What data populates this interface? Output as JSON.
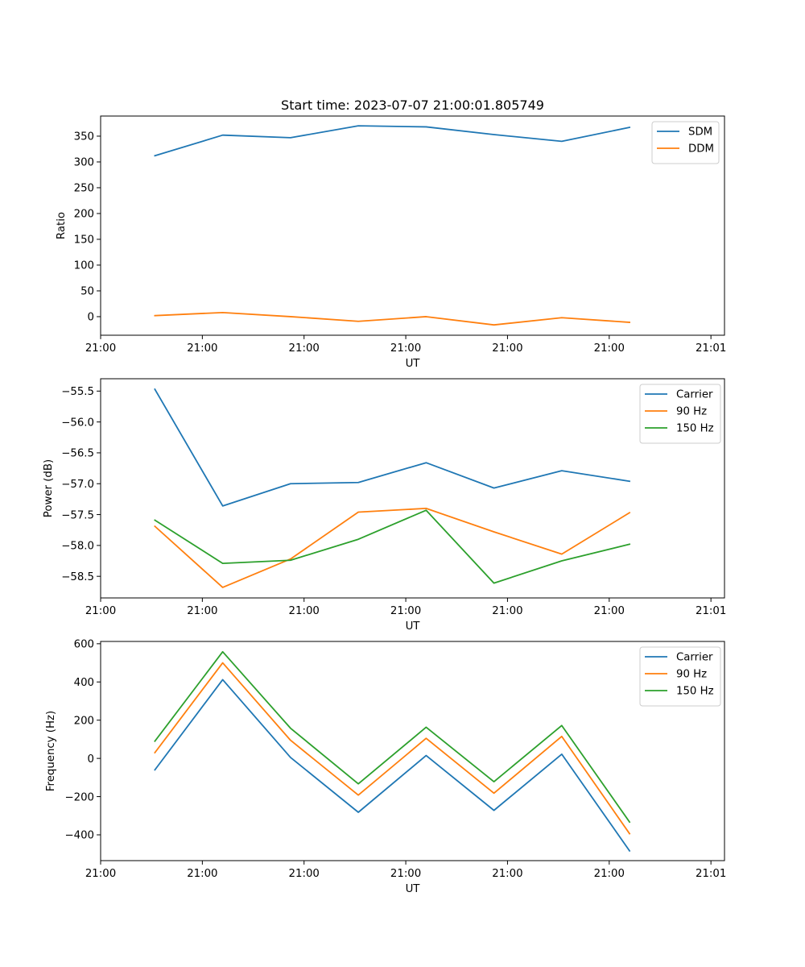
{
  "figure_title": "Start time: 2023-07-07 21:00:01.805749",
  "chart_data": [
    {
      "type": "line",
      "xlabel": "UT",
      "ylabel": "Ratio",
      "title": "Start time: 2023-07-07 21:00:01.805749",
      "x": [
        1,
        2,
        3,
        4,
        5,
        6,
        7,
        8
      ],
      "xlim": [
        0.2,
        9.4
      ],
      "x_ticks": [
        0.2,
        1.7,
        3.2,
        4.7,
        6.2,
        7.7,
        9.2
      ],
      "x_tick_labels": [
        "21:00",
        "21:00",
        "21:00",
        "21:00",
        "21:00",
        "21:00",
        "21:01"
      ],
      "ylim": [
        -36,
        389
      ],
      "y_ticks": [
        0,
        50,
        100,
        150,
        200,
        250,
        300,
        350
      ],
      "y_tick_labels": [
        "0",
        "50",
        "100",
        "150",
        "200",
        "250",
        "300",
        "350"
      ],
      "legend_position": "top-right",
      "series": [
        {
          "name": "SDM",
          "color": "#1f77b4",
          "values": [
            312,
            352,
            347,
            370,
            368,
            353,
            340,
            367
          ]
        },
        {
          "name": "DDM",
          "color": "#ff7f0e",
          "values": [
            2,
            8,
            0,
            -9,
            0,
            -16,
            -2,
            -11
          ]
        }
      ]
    },
    {
      "type": "line",
      "xlabel": "UT",
      "ylabel": "Power (dB)",
      "x": [
        1,
        2,
        3,
        4,
        5,
        6,
        7,
        8
      ],
      "xlim": [
        0.2,
        9.4
      ],
      "x_ticks": [
        0.2,
        1.7,
        3.2,
        4.7,
        6.2,
        7.7,
        9.2
      ],
      "x_tick_labels": [
        "21:00",
        "21:00",
        "21:00",
        "21:00",
        "21:00",
        "21:00",
        "21:01"
      ],
      "ylim": [
        -58.85,
        -55.3
      ],
      "y_ticks": [
        -55.5,
        -56.0,
        -56.5,
        -57.0,
        -57.5,
        -58.0,
        -58.5
      ],
      "y_tick_labels": [
        "−55.5",
        "−56.0",
        "−56.5",
        "−57.0",
        "−57.5",
        "−58.0",
        "−58.5"
      ],
      "legend_position": "top-right",
      "series": [
        {
          "name": "Carrier",
          "color": "#1f77b4",
          "values": [
            -55.47,
            -57.36,
            -57.0,
            -56.98,
            -56.66,
            -57.07,
            -56.79,
            -56.96
          ]
        },
        {
          "name": "90 Hz",
          "color": "#ff7f0e",
          "values": [
            -57.69,
            -58.68,
            -58.22,
            -57.46,
            -57.4,
            -57.78,
            -58.14,
            -57.47
          ]
        },
        {
          "name": "150 Hz",
          "color": "#2ca02c",
          "values": [
            -57.59,
            -58.29,
            -58.24,
            -57.9,
            -57.43,
            -58.61,
            -58.25,
            -57.98
          ]
        }
      ]
    },
    {
      "type": "line",
      "xlabel": "UT",
      "ylabel": "Frequency (Hz)",
      "x": [
        1,
        2,
        3,
        4,
        5,
        6,
        7,
        8
      ],
      "xlim": [
        0.2,
        9.4
      ],
      "x_ticks": [
        0.2,
        1.7,
        3.2,
        4.7,
        6.2,
        7.7,
        9.2
      ],
      "x_tick_labels": [
        "21:00",
        "21:00",
        "21:00",
        "21:00",
        "21:00",
        "21:00",
        "21:01"
      ],
      "ylim": [
        -535,
        612
      ],
      "y_ticks": [
        600,
        400,
        200,
        0,
        -200,
        -400
      ],
      "y_tick_labels": [
        "600",
        "400",
        "200",
        "0",
        "−200",
        "−400"
      ],
      "legend_position": "top-right",
      "series": [
        {
          "name": "Carrier",
          "color": "#1f77b4",
          "values": [
            -60,
            412,
            5,
            -282,
            15,
            -272,
            22,
            -484
          ]
        },
        {
          "name": "90 Hz",
          "color": "#ff7f0e",
          "values": [
            30,
            500,
            95,
            -192,
            105,
            -182,
            115,
            -394
          ]
        },
        {
          "name": "150 Hz",
          "color": "#2ca02c",
          "values": [
            90,
            558,
            158,
            -133,
            163,
            -122,
            172,
            -333
          ]
        }
      ]
    }
  ]
}
